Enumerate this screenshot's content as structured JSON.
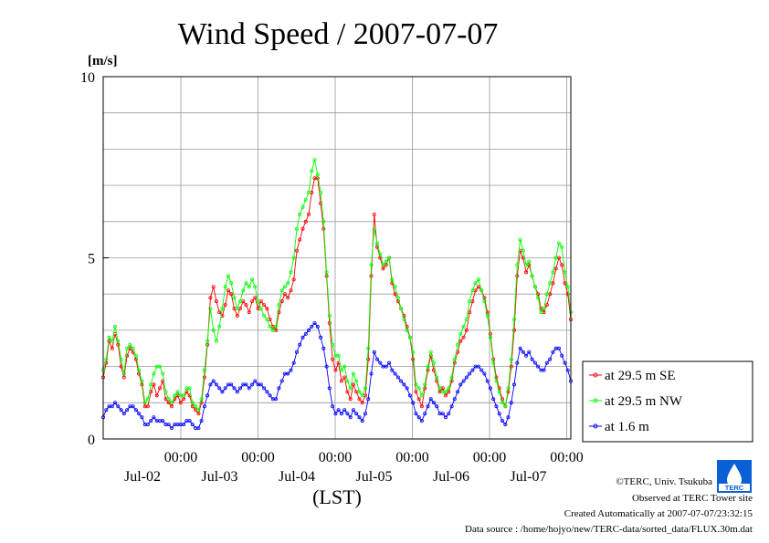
{
  "chart_data": {
    "type": "line",
    "title": "Wind Speed / 2007-07-07",
    "ylabel": "[m/s]",
    "xlabel": "(LST)",
    "ylim": [
      0,
      10
    ],
    "yticks": [
      "0",
      "5",
      "10"
    ],
    "x_range_days": [
      "2007-07-01T20:00",
      "2007-07-08T00:00"
    ],
    "xticks": [
      {
        "time": "00:00",
        "date": "Jul-02"
      },
      {
        "time": "00:00",
        "date": "Jul-03"
      },
      {
        "time": "00:00",
        "date": "Jul-04"
      },
      {
        "time": "00:00",
        "date": "Jul-05"
      },
      {
        "time": "00:00",
        "date": "Jul-06"
      },
      {
        "time": "00:00",
        "date": "Jul-07"
      }
    ],
    "grid": true,
    "legend_position": "right",
    "sample_interval_hours": 1,
    "series": [
      {
        "name": "at 29.5 m SE",
        "color": "#ff0000",
        "values": [
          1.7,
          2.1,
          2.7,
          2.5,
          2.9,
          2.6,
          2.0,
          1.7,
          2.3,
          2.5,
          2.4,
          2.2,
          1.8,
          1.5,
          0.9,
          0.9,
          1.3,
          1.5,
          1.2,
          1.4,
          1.6,
          1.1,
          1.0,
          0.9,
          1.1,
          1.2,
          1.0,
          1.1,
          1.3,
          1.2,
          0.9,
          0.8,
          0.7,
          1.0,
          1.7,
          2.6,
          3.9,
          4.2,
          3.8,
          3.5,
          3.4,
          3.7,
          4.1,
          4.0,
          3.6,
          3.4,
          3.6,
          3.8,
          3.7,
          3.5,
          3.8,
          3.9,
          3.6,
          3.8,
          3.7,
          3.6,
          3.3,
          3.1,
          3.0,
          3.5,
          3.8,
          4.0,
          3.9,
          4.1,
          4.4,
          5.2,
          5.5,
          5.8,
          6.0,
          6.2,
          6.8,
          7.2,
          7.2,
          6.5,
          5.8,
          4.5,
          3.2,
          2.2,
          1.9,
          2.1,
          1.6,
          1.7,
          1.3,
          1.1,
          1.5,
          1.3,
          1.1,
          1.0,
          1.2,
          2.2,
          4.5,
          6.2,
          5.3,
          5.0,
          4.7,
          4.8,
          5.0,
          4.3,
          4.0,
          3.8,
          3.6,
          3.4,
          3.1,
          2.8,
          2.2,
          1.3,
          1.1,
          0.9,
          1.4,
          1.9,
          2.3,
          1.9,
          1.6,
          1.3,
          1.4,
          1.2,
          1.3,
          1.6,
          2.1,
          2.4,
          2.7,
          2.8,
          3.0,
          3.5,
          3.8,
          4.1,
          4.2,
          4.1,
          3.9,
          3.5,
          2.9,
          2.2,
          1.7,
          1.4,
          1.1,
          0.9,
          1.3,
          2.0,
          3.0,
          4.5,
          5.2,
          5.0,
          4.6,
          4.8,
          4.5,
          4.2,
          4.0,
          3.6,
          3.5,
          3.7,
          4.0,
          4.3,
          4.7,
          5.0,
          4.8,
          4.3,
          4.0,
          3.3
        ]
      },
      {
        "name": "at 29.5 m NW",
        "color": "#00ff00",
        "values": [
          1.9,
          2.2,
          2.8,
          2.7,
          3.1,
          2.7,
          2.2,
          1.8,
          2.5,
          2.6,
          2.5,
          2.3,
          1.9,
          1.6,
          1.0,
          1.1,
          1.5,
          1.8,
          2.0,
          2.0,
          1.8,
          1.3,
          1.1,
          1.0,
          1.2,
          1.3,
          1.2,
          1.2,
          1.4,
          1.4,
          1.0,
          0.9,
          0.8,
          1.1,
          1.9,
          2.7,
          3.6,
          3.0,
          2.7,
          3.1,
          3.6,
          4.2,
          4.5,
          4.3,
          3.9,
          3.6,
          3.8,
          4.1,
          4.3,
          4.2,
          4.4,
          4.2,
          3.8,
          3.6,
          3.4,
          3.3,
          3.1,
          3.0,
          3.1,
          3.7,
          4.1,
          4.2,
          4.3,
          4.6,
          5.0,
          5.8,
          6.2,
          6.4,
          6.6,
          6.8,
          7.4,
          7.7,
          7.3,
          6.8,
          6.0,
          4.6,
          3.4,
          2.6,
          2.3,
          2.3,
          1.9,
          2.0,
          1.6,
          1.4,
          1.8,
          1.6,
          1.3,
          1.2,
          1.4,
          2.5,
          4.8,
          5.8,
          5.4,
          5.1,
          4.8,
          4.9,
          5.0,
          4.4,
          4.2,
          3.9,
          3.6,
          3.3,
          3.0,
          2.8,
          2.4,
          1.5,
          1.4,
          1.2,
          1.5,
          2.0,
          2.4,
          2.1,
          1.7,
          1.4,
          1.3,
          1.3,
          1.4,
          1.7,
          2.2,
          2.6,
          2.9,
          3.1,
          3.3,
          3.8,
          4.1,
          4.3,
          4.4,
          4.1,
          3.8,
          3.4,
          2.8,
          2.1,
          1.6,
          1.3,
          1.0,
          0.9,
          1.4,
          2.2,
          3.3,
          4.8,
          5.5,
          5.2,
          4.8,
          4.9,
          4.5,
          4.2,
          3.9,
          3.5,
          3.6,
          4.0,
          4.3,
          4.6,
          5.0,
          5.4,
          5.3,
          4.6,
          4.2,
          3.5
        ]
      },
      {
        "name": "at 1.6 m",
        "color": "#0000ff",
        "values": [
          0.6,
          0.8,
          0.9,
          0.9,
          1.0,
          0.9,
          0.8,
          0.7,
          0.8,
          0.9,
          0.9,
          0.8,
          0.7,
          0.6,
          0.4,
          0.4,
          0.5,
          0.6,
          0.5,
          0.5,
          0.5,
          0.4,
          0.4,
          0.3,
          0.4,
          0.4,
          0.4,
          0.4,
          0.5,
          0.5,
          0.4,
          0.3,
          0.3,
          0.5,
          0.9,
          1.2,
          1.5,
          1.6,
          1.5,
          1.4,
          1.3,
          1.4,
          1.5,
          1.5,
          1.4,
          1.3,
          1.4,
          1.5,
          1.5,
          1.4,
          1.5,
          1.6,
          1.5,
          1.5,
          1.4,
          1.3,
          1.2,
          1.1,
          1.1,
          1.4,
          1.6,
          1.8,
          1.8,
          1.9,
          2.1,
          2.4,
          2.6,
          2.8,
          2.9,
          3.0,
          3.1,
          3.2,
          3.1,
          2.8,
          2.5,
          2.0,
          1.4,
          0.9,
          0.7,
          0.8,
          0.7,
          0.8,
          0.7,
          0.6,
          0.8,
          0.7,
          0.6,
          0.5,
          0.7,
          1.1,
          1.8,
          2.4,
          2.2,
          2.1,
          2.0,
          2.0,
          2.1,
          1.9,
          1.8,
          1.7,
          1.6,
          1.5,
          1.4,
          1.2,
          1.0,
          0.7,
          0.6,
          0.5,
          0.7,
          0.9,
          1.1,
          1.0,
          0.9,
          0.7,
          0.7,
          0.6,
          0.7,
          0.9,
          1.1,
          1.3,
          1.5,
          1.6,
          1.7,
          1.8,
          1.9,
          2.0,
          2.0,
          1.9,
          1.8,
          1.6,
          1.4,
          1.1,
          0.9,
          0.7,
          0.5,
          0.4,
          0.6,
          1.0,
          1.5,
          2.1,
          2.5,
          2.4,
          2.3,
          2.4,
          2.2,
          2.1,
          2.0,
          1.9,
          1.9,
          2.1,
          2.2,
          2.4,
          2.5,
          2.5,
          2.3,
          2.1,
          1.9,
          1.6
        ]
      }
    ]
  },
  "footer": {
    "copyright": "©TERC, Univ. Tsukuba",
    "site": "Observed at TERC Tower site",
    "created": "Created Automatically at 2007-07-07/23:32:15",
    "source": "Data source : /home/hojyo/new/TERC-data/sorted_data/FLUX.30m.dat",
    "logo_text": "TERC"
  }
}
